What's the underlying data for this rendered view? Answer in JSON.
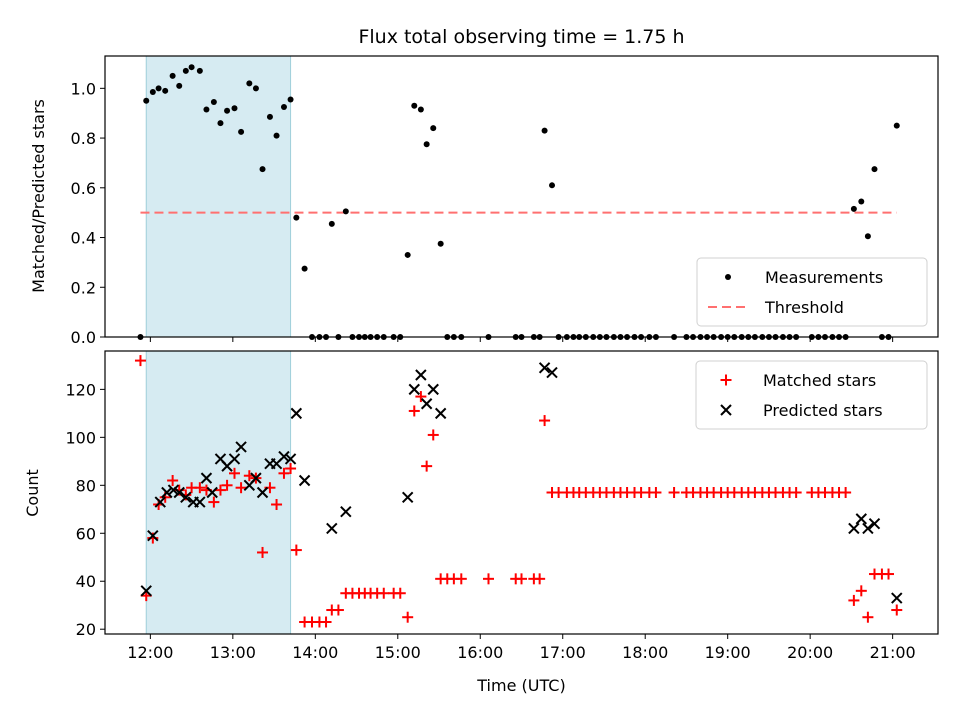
{
  "chart_data": [
    {
      "type": "scatter",
      "title": "Flux total observing time = 1.75 h",
      "xlabel": "",
      "ylabel": "Matched/Predicted stars",
      "x_unit": "hours UTC",
      "xlim": [
        11.45,
        21.55
      ],
      "ylim": [
        0,
        1.13
      ],
      "yticks": [
        0.0,
        0.2,
        0.4,
        0.6,
        0.8,
        1.0
      ],
      "ytick_labels": [
        "0.0",
        "0.2",
        "0.4",
        "0.6",
        "0.8",
        "1.0"
      ],
      "legend_position": "lower-right",
      "shaded_span": {
        "x0": 11.95,
        "x1": 13.7,
        "color": "#add8e6"
      },
      "threshold": {
        "name": "Threshold",
        "y": 0.5,
        "x0": 11.88,
        "x1": 21.05,
        "color": "#ff7070",
        "style": "dashed"
      },
      "series": [
        {
          "name": "Measurements",
          "marker": "dot",
          "color": "#000000",
          "points": [
            [
              11.88,
              0.0
            ],
            [
              11.95,
              0.95
            ],
            [
              12.03,
              0.985
            ],
            [
              12.1,
              1.0
            ],
            [
              12.18,
              0.99
            ],
            [
              12.27,
              1.05
            ],
            [
              12.35,
              1.01
            ],
            [
              12.43,
              1.07
            ],
            [
              12.5,
              1.085
            ],
            [
              12.6,
              1.07
            ],
            [
              12.68,
              0.915
            ],
            [
              12.77,
              0.945
            ],
            [
              12.85,
              0.86
            ],
            [
              12.93,
              0.91
            ],
            [
              13.02,
              0.92
            ],
            [
              13.1,
              0.825
            ],
            [
              13.2,
              1.02
            ],
            [
              13.28,
              1.0
            ],
            [
              13.36,
              0.675
            ],
            [
              13.45,
              0.885
            ],
            [
              13.53,
              0.81
            ],
            [
              13.62,
              0.925
            ],
            [
              13.7,
              0.955
            ],
            [
              13.77,
              0.48
            ],
            [
              13.87,
              0.275
            ],
            [
              13.96,
              0.0
            ],
            [
              14.05,
              0.0
            ],
            [
              14.13,
              0.0
            ],
            [
              14.2,
              0.455
            ],
            [
              14.28,
              0.0
            ],
            [
              14.37,
              0.505
            ],
            [
              14.45,
              0.0
            ],
            [
              14.53,
              0.0
            ],
            [
              14.6,
              0.0
            ],
            [
              14.67,
              0.0
            ],
            [
              14.75,
              0.0
            ],
            [
              14.83,
              0.0
            ],
            [
              14.95,
              0.0
            ],
            [
              15.03,
              0.0
            ],
            [
              15.12,
              0.33
            ],
            [
              15.2,
              0.93
            ],
            [
              15.28,
              0.915
            ],
            [
              15.35,
              0.775
            ],
            [
              15.43,
              0.84
            ],
            [
              15.52,
              0.375
            ],
            [
              15.6,
              0.0
            ],
            [
              15.68,
              0.0
            ],
            [
              15.77,
              0.0
            ],
            [
              16.1,
              0.0
            ],
            [
              16.43,
              0.0
            ],
            [
              16.5,
              0.0
            ],
            [
              16.65,
              0.0
            ],
            [
              16.72,
              0.0
            ],
            [
              16.78,
              0.83
            ],
            [
              16.87,
              0.61
            ],
            [
              16.95,
              0.0
            ],
            [
              17.05,
              0.0
            ],
            [
              17.13,
              0.0
            ],
            [
              17.2,
              0.0
            ],
            [
              17.28,
              0.0
            ],
            [
              17.37,
              0.0
            ],
            [
              17.45,
              0.0
            ],
            [
              17.53,
              0.0
            ],
            [
              17.62,
              0.0
            ],
            [
              17.7,
              0.0
            ],
            [
              17.78,
              0.0
            ],
            [
              17.87,
              0.0
            ],
            [
              17.95,
              0.0
            ],
            [
              18.05,
              0.0
            ],
            [
              18.13,
              0.0
            ],
            [
              18.35,
              0.0
            ],
            [
              18.5,
              0.0
            ],
            [
              18.58,
              0.0
            ],
            [
              18.67,
              0.0
            ],
            [
              18.75,
              0.0
            ],
            [
              18.83,
              0.0
            ],
            [
              18.92,
              0.0
            ],
            [
              19.0,
              0.0
            ],
            [
              19.08,
              0.0
            ],
            [
              19.17,
              0.0
            ],
            [
              19.25,
              0.0
            ],
            [
              19.33,
              0.0
            ],
            [
              19.42,
              0.0
            ],
            [
              19.5,
              0.0
            ],
            [
              19.58,
              0.0
            ],
            [
              19.67,
              0.0
            ],
            [
              19.75,
              0.0
            ],
            [
              19.83,
              0.0
            ],
            [
              20.02,
              0.0
            ],
            [
              20.1,
              0.0
            ],
            [
              20.18,
              0.0
            ],
            [
              20.27,
              0.0
            ],
            [
              20.35,
              0.0
            ],
            [
              20.43,
              0.0
            ],
            [
              20.53,
              0.515
            ],
            [
              20.62,
              0.545
            ],
            [
              20.7,
              0.405
            ],
            [
              20.78,
              0.675
            ],
            [
              20.87,
              0.0
            ],
            [
              20.95,
              0.0
            ],
            [
              21.05,
              0.85
            ]
          ]
        }
      ]
    },
    {
      "type": "scatter",
      "title": "",
      "xlabel": "Time (UTC)",
      "ylabel": "Count",
      "x_unit": "hours UTC",
      "xlim": [
        11.45,
        21.55
      ],
      "ylim": [
        18,
        136
      ],
      "xticks": [
        12,
        13,
        14,
        15,
        16,
        17,
        18,
        19,
        20,
        21
      ],
      "xtick_labels": [
        "12:00",
        "13:00",
        "14:00",
        "15:00",
        "16:00",
        "17:00",
        "18:00",
        "19:00",
        "20:00",
        "21:00"
      ],
      "yticks": [
        20,
        40,
        60,
        80,
        100,
        120
      ],
      "ytick_labels": [
        "20",
        "40",
        "60",
        "80",
        "100",
        "120"
      ],
      "legend_position": "upper-right",
      "shaded_span": {
        "x0": 11.95,
        "x1": 13.7,
        "color": "#add8e6"
      },
      "series": [
        {
          "name": "Matched stars",
          "marker": "plus",
          "color": "#ff0000",
          "points": [
            [
              11.88,
              132
            ],
            [
              11.95,
              34
            ],
            [
              12.03,
              58
            ],
            [
              12.1,
              72
            ],
            [
              12.18,
              75
            ],
            [
              12.27,
              82
            ],
            [
              12.35,
              78
            ],
            [
              12.43,
              76
            ],
            [
              12.5,
              79
            ],
            [
              12.6,
              79
            ],
            [
              12.68,
              78
            ],
            [
              12.77,
              73
            ],
            [
              12.85,
              78
            ],
            [
              12.93,
              80
            ],
            [
              13.02,
              85
            ],
            [
              13.1,
              79
            ],
            [
              13.2,
              84
            ],
            [
              13.28,
              83
            ],
            [
              13.36,
              52
            ],
            [
              13.45,
              79
            ],
            [
              13.53,
              72
            ],
            [
              13.62,
              85
            ],
            [
              13.7,
              87
            ],
            [
              13.77,
              53
            ],
            [
              13.87,
              23
            ],
            [
              13.96,
              23
            ],
            [
              14.05,
              23
            ],
            [
              14.13,
              23
            ],
            [
              14.2,
              28
            ],
            [
              14.28,
              28
            ],
            [
              14.37,
              35
            ],
            [
              14.45,
              35
            ],
            [
              14.53,
              35
            ],
            [
              14.6,
              35
            ],
            [
              14.67,
              35
            ],
            [
              14.75,
              35
            ],
            [
              14.83,
              35
            ],
            [
              14.95,
              35
            ],
            [
              15.03,
              35
            ],
            [
              15.12,
              25
            ],
            [
              15.2,
              111
            ],
            [
              15.28,
              117
            ],
            [
              15.35,
              88
            ],
            [
              15.43,
              101
            ],
            [
              15.52,
              41
            ],
            [
              15.6,
              41
            ],
            [
              15.68,
              41
            ],
            [
              15.77,
              41
            ],
            [
              16.1,
              41
            ],
            [
              16.43,
              41
            ],
            [
              16.5,
              41
            ],
            [
              16.65,
              41
            ],
            [
              16.72,
              41
            ],
            [
              16.78,
              107
            ],
            [
              16.87,
              77
            ],
            [
              16.95,
              77
            ],
            [
              17.05,
              77
            ],
            [
              17.13,
              77
            ],
            [
              17.2,
              77
            ],
            [
              17.28,
              77
            ],
            [
              17.37,
              77
            ],
            [
              17.45,
              77
            ],
            [
              17.53,
              77
            ],
            [
              17.62,
              77
            ],
            [
              17.7,
              77
            ],
            [
              17.78,
              77
            ],
            [
              17.87,
              77
            ],
            [
              17.95,
              77
            ],
            [
              18.05,
              77
            ],
            [
              18.13,
              77
            ],
            [
              18.35,
              77
            ],
            [
              18.5,
              77
            ],
            [
              18.58,
              77
            ],
            [
              18.67,
              77
            ],
            [
              18.75,
              77
            ],
            [
              18.83,
              77
            ],
            [
              18.92,
              77
            ],
            [
              19.0,
              77
            ],
            [
              19.08,
              77
            ],
            [
              19.17,
              77
            ],
            [
              19.25,
              77
            ],
            [
              19.33,
              77
            ],
            [
              19.42,
              77
            ],
            [
              19.5,
              77
            ],
            [
              19.58,
              77
            ],
            [
              19.67,
              77
            ],
            [
              19.75,
              77
            ],
            [
              19.83,
              77
            ],
            [
              20.02,
              77
            ],
            [
              20.1,
              77
            ],
            [
              20.18,
              77
            ],
            [
              20.27,
              77
            ],
            [
              20.35,
              77
            ],
            [
              20.43,
              77
            ],
            [
              20.53,
              32
            ],
            [
              20.62,
              36
            ],
            [
              20.7,
              25
            ],
            [
              20.78,
              43
            ],
            [
              20.87,
              43
            ],
            [
              20.95,
              43
            ],
            [
              21.05,
              28
            ]
          ]
        },
        {
          "name": "Predicted stars",
          "marker": "x",
          "color": "#000000",
          "points": [
            [
              11.95,
              36
            ],
            [
              12.03,
              59
            ],
            [
              12.12,
              73
            ],
            [
              12.2,
              77
            ],
            [
              12.28,
              78
            ],
            [
              12.35,
              77
            ],
            [
              12.43,
              75
            ],
            [
              12.52,
              73
            ],
            [
              12.6,
              73
            ],
            [
              12.68,
              83
            ],
            [
              12.75,
              77
            ],
            [
              12.85,
              91
            ],
            [
              12.93,
              88
            ],
            [
              13.02,
              91
            ],
            [
              13.1,
              96
            ],
            [
              13.2,
              80
            ],
            [
              13.28,
              83
            ],
            [
              13.36,
              77
            ],
            [
              13.45,
              89
            ],
            [
              13.53,
              89
            ],
            [
              13.62,
              92
            ],
            [
              13.7,
              91
            ],
            [
              13.77,
              110
            ],
            [
              13.87,
              82
            ],
            [
              14.2,
              62
            ],
            [
              14.37,
              69
            ],
            [
              15.12,
              75
            ],
            [
              15.2,
              120
            ],
            [
              15.28,
              126
            ],
            [
              15.35,
              114
            ],
            [
              15.43,
              120
            ],
            [
              15.52,
              110
            ],
            [
              16.78,
              129
            ],
            [
              16.87,
              127
            ],
            [
              20.53,
              62
            ],
            [
              20.62,
              66
            ],
            [
              20.7,
              62
            ],
            [
              20.78,
              64
            ],
            [
              21.05,
              33
            ]
          ]
        }
      ]
    }
  ]
}
